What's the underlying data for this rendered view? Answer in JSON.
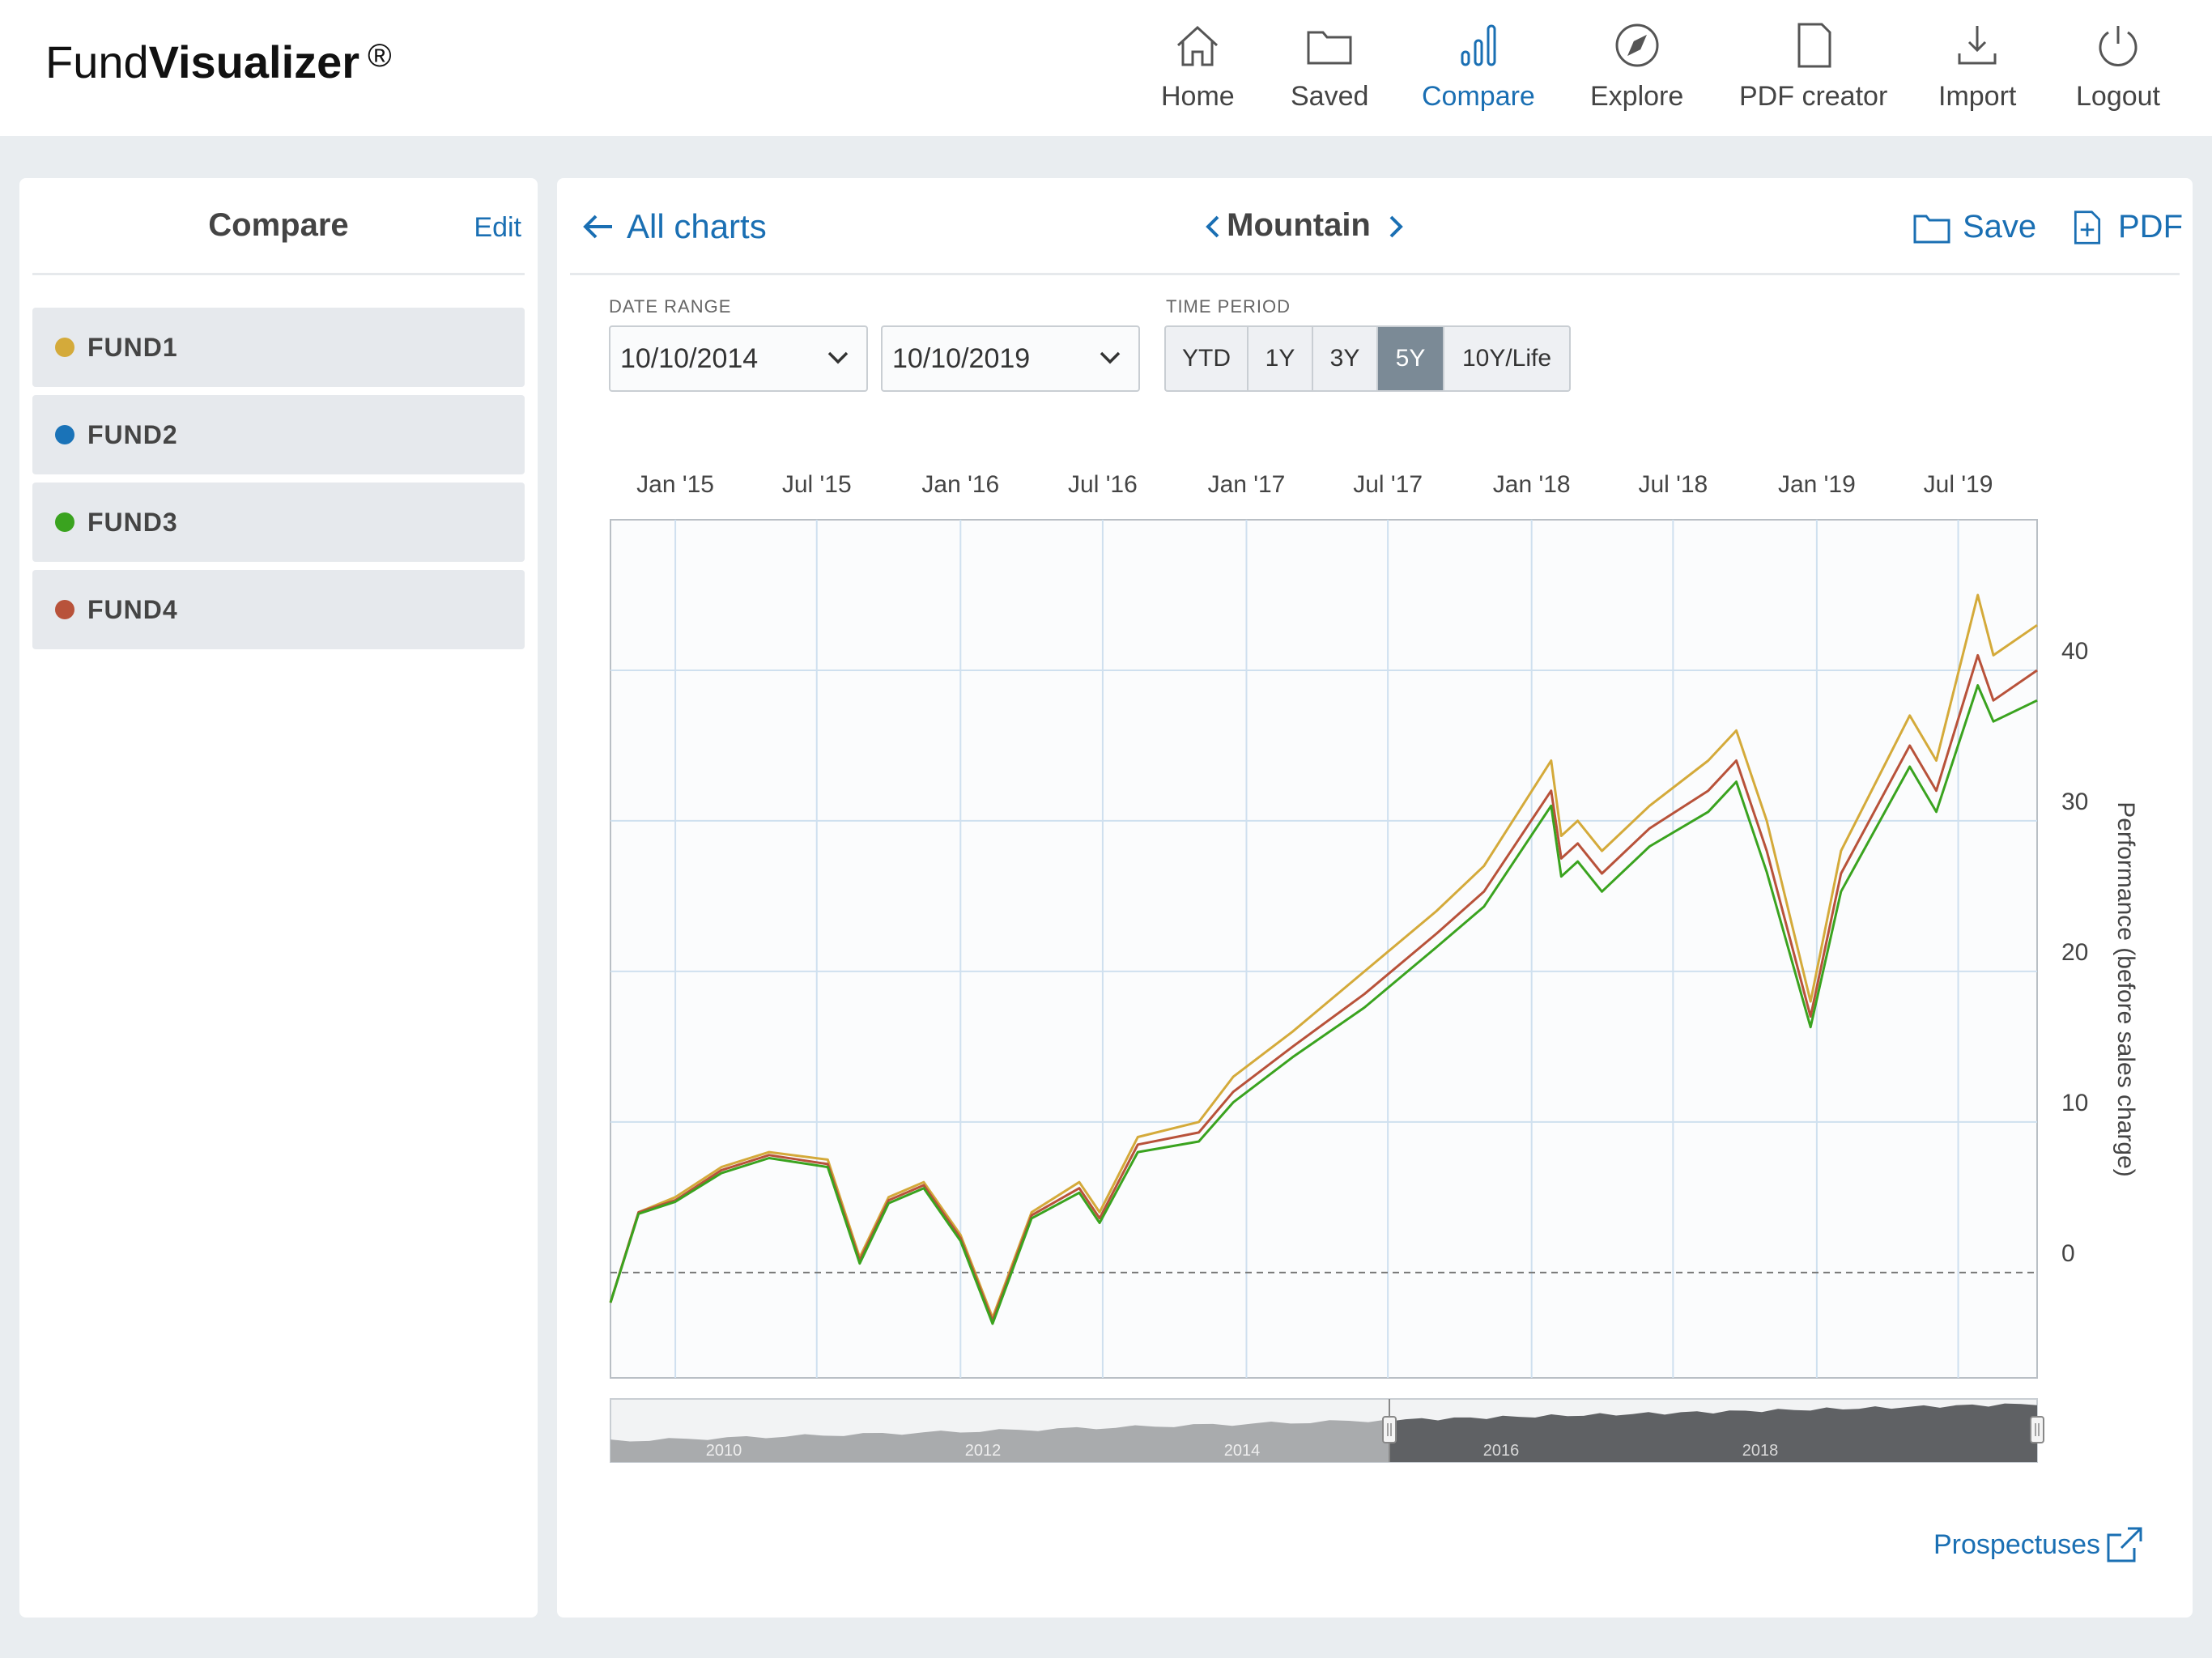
{
  "app": {
    "logo_regular": "Fund",
    "logo_bold": "Visualizer",
    "logo_mark": "®"
  },
  "nav": [
    {
      "label": "Home",
      "icon": "home-icon",
      "active": false
    },
    {
      "label": "Saved",
      "icon": "folder-icon",
      "active": false
    },
    {
      "label": "Compare",
      "icon": "bar-chart-icon",
      "active": true
    },
    {
      "label": "Explore",
      "icon": "compass-icon",
      "active": false
    },
    {
      "label": "PDF creator",
      "icon": "document-icon",
      "active": false
    },
    {
      "label": "Import",
      "icon": "import-icon",
      "active": false
    },
    {
      "label": "Logout",
      "icon": "power-icon",
      "active": false
    }
  ],
  "sidebar": {
    "title": "Compare",
    "edit_label": "Edit",
    "funds": [
      {
        "name": "FUND1",
        "color": "#d4aa3a"
      },
      {
        "name": "FUND2",
        "color": "#1a73b8"
      },
      {
        "name": "FUND3",
        "color": "#3aa31f"
      },
      {
        "name": "FUND4",
        "color": "#b8523a"
      }
    ]
  },
  "main": {
    "back_label": "All charts",
    "chart_name": "Mountain",
    "save_label": "Save",
    "pdf_label": "PDF",
    "date_range_label": "DATE RANGE",
    "start_date": "10/10/2014",
    "end_date": "10/10/2019",
    "time_period_label": "TIME PERIOD",
    "periods": [
      {
        "label": "YTD",
        "active": false
      },
      {
        "label": "1Y",
        "active": false
      },
      {
        "label": "3Y",
        "active": false
      },
      {
        "label": "5Y",
        "active": true
      },
      {
        "label": "10Y/Life",
        "active": false
      }
    ],
    "prospectus_label": "Prospectuses"
  },
  "chart_data": {
    "type": "line",
    "ylabel": "Performance (before sales charge)",
    "x_ticks": [
      "Jan '15",
      "Jul '15",
      "Jan '16",
      "Jul '16",
      "Jan '17",
      "Jul '17",
      "Jan '18",
      "Jul '18",
      "Jan '19",
      "Jul '19"
    ],
    "y_ticks": [
      0,
      10,
      20,
      30,
      40
    ],
    "ylim": [
      -7,
      50
    ],
    "x_range": [
      "2014-10-10",
      "2019-10-10"
    ],
    "baseline": 0,
    "series": [
      {
        "name": "FUND1",
        "color": "#d4aa3a",
        "x": [
          "2014-10-10",
          "2014-11-15",
          "2015-01-01",
          "2015-03-01",
          "2015-05-01",
          "2015-07-15",
          "2015-08-25",
          "2015-10-01",
          "2015-11-15",
          "2016-01-01",
          "2016-02-11",
          "2016-04-01",
          "2016-06-01",
          "2016-06-27",
          "2016-08-15",
          "2016-11-01",
          "2016-12-15",
          "2017-03-01",
          "2017-06-01",
          "2017-09-01",
          "2017-11-01",
          "2018-01-26",
          "2018-02-08",
          "2018-03-01",
          "2018-04-01",
          "2018-06-01",
          "2018-08-15",
          "2018-09-20",
          "2018-10-29",
          "2018-12-24",
          "2019-02-01",
          "2019-04-30",
          "2019-06-03",
          "2019-07-26",
          "2019-08-15",
          "2019-10-10"
        ],
        "values": [
          -2.0,
          4.0,
          5.0,
          7.0,
          8.0,
          7.5,
          1.0,
          5.0,
          6.0,
          2.5,
          -3.0,
          4.0,
          6.0,
          4.0,
          9.0,
          10.0,
          13.0,
          16.0,
          20.0,
          24.0,
          27.0,
          34.0,
          29.0,
          30.0,
          28.0,
          31.0,
          34.0,
          36.0,
          30.0,
          18.0,
          28.0,
          37.0,
          34.0,
          45.0,
          41.0,
          43.0
        ]
      },
      {
        "name": "FUND4",
        "color": "#b8523a",
        "x": [
          "2014-10-10",
          "2014-11-15",
          "2015-01-01",
          "2015-03-01",
          "2015-05-01",
          "2015-07-15",
          "2015-08-25",
          "2015-10-01",
          "2015-11-15",
          "2016-01-01",
          "2016-02-11",
          "2016-04-01",
          "2016-06-01",
          "2016-06-27",
          "2016-08-15",
          "2016-11-01",
          "2016-12-15",
          "2017-03-01",
          "2017-06-01",
          "2017-09-01",
          "2017-11-01",
          "2018-01-26",
          "2018-02-08",
          "2018-03-01",
          "2018-04-01",
          "2018-06-01",
          "2018-08-15",
          "2018-09-20",
          "2018-10-29",
          "2018-12-24",
          "2019-02-01",
          "2019-04-30",
          "2019-06-03",
          "2019-07-26",
          "2019-08-15",
          "2019-10-10"
        ],
        "values": [
          -2.0,
          4.0,
          4.8,
          6.8,
          7.8,
          7.2,
          0.8,
          4.8,
          5.8,
          2.3,
          -3.2,
          3.8,
          5.6,
          3.6,
          8.5,
          9.3,
          12.0,
          15.0,
          18.5,
          22.5,
          25.3,
          32.0,
          27.5,
          28.5,
          26.5,
          29.5,
          32.0,
          34.0,
          28.0,
          17.0,
          26.5,
          35.0,
          32.0,
          41.0,
          38.0,
          40.0
        ]
      },
      {
        "name": "FUND3",
        "color": "#3aa31f",
        "x": [
          "2014-10-10",
          "2014-11-15",
          "2015-01-01",
          "2015-03-01",
          "2015-05-01",
          "2015-07-15",
          "2015-08-25",
          "2015-10-01",
          "2015-11-15",
          "2016-01-01",
          "2016-02-11",
          "2016-04-01",
          "2016-06-01",
          "2016-06-27",
          "2016-08-15",
          "2016-11-01",
          "2016-12-15",
          "2017-03-01",
          "2017-06-01",
          "2017-09-01",
          "2017-11-01",
          "2018-01-26",
          "2018-02-08",
          "2018-03-01",
          "2018-04-01",
          "2018-06-01",
          "2018-08-15",
          "2018-09-20",
          "2018-10-29",
          "2018-12-24",
          "2019-02-01",
          "2019-04-30",
          "2019-06-03",
          "2019-07-26",
          "2019-08-15",
          "2019-10-10"
        ],
        "values": [
          -2.0,
          3.9,
          4.7,
          6.6,
          7.6,
          7.0,
          0.6,
          4.6,
          5.6,
          2.1,
          -3.4,
          3.6,
          5.3,
          3.3,
          8.0,
          8.7,
          11.3,
          14.3,
          17.6,
          21.6,
          24.3,
          31.0,
          26.3,
          27.3,
          25.3,
          28.3,
          30.6,
          32.6,
          26.6,
          16.3,
          25.3,
          33.6,
          30.6,
          39.0,
          36.6,
          38.0
        ]
      }
    ],
    "navigator": {
      "labels": [
        "2010",
        "2012",
        "2014",
        "2016",
        "2018"
      ]
    }
  }
}
